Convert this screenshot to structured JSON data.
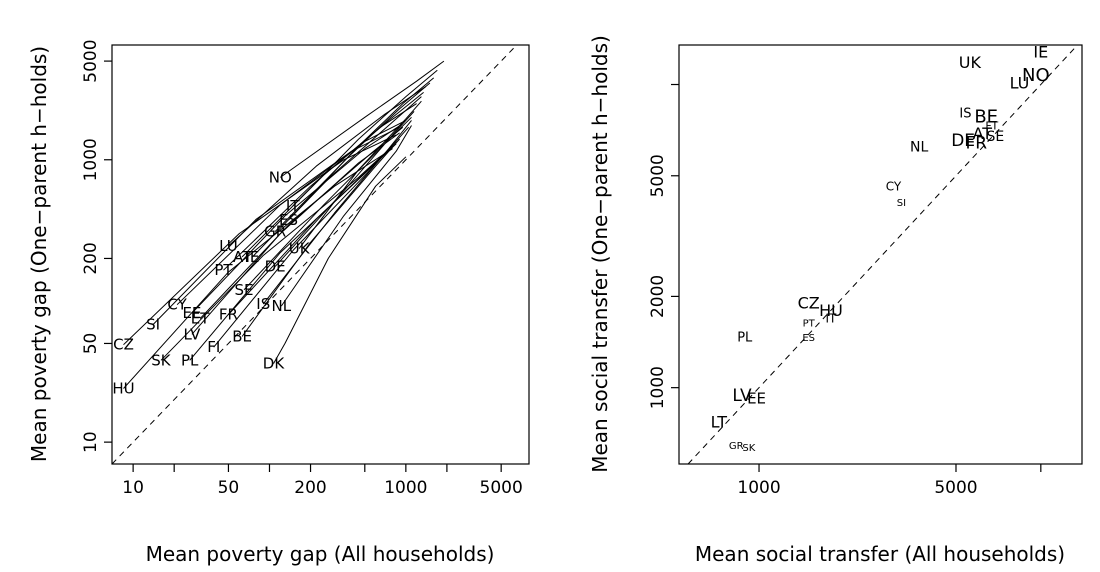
{
  "chart_data": [
    {
      "type": "line",
      "xlabel": "Mean poverty gap (All households)",
      "ylabel": "Mean poverty gap (One−parent h−holds)",
      "xscale": "log",
      "yscale": "log",
      "xlim": [
        7,
        8000
      ],
      "ylim": [
        7,
        6500
      ],
      "xticks": [
        10,
        20,
        50,
        100,
        200,
        500,
        1000,
        2000,
        5000
      ],
      "xtick_labels": [
        "10",
        "",
        "50",
        "",
        "200",
        "",
        "1000",
        "",
        "5000"
      ],
      "yticks": [
        10,
        50,
        200,
        1000,
        5000
      ],
      "ytick_labels": [
        "10",
        "50",
        "200",
        "1000",
        "5000"
      ],
      "reference_line": "y = x (dashed)",
      "series": [
        {
          "name": "NO",
          "x": [
            120,
            500,
            1200,
            1900
          ],
          "y": [
            750,
            2000,
            3600,
            5000
          ]
        },
        {
          "name": "IT",
          "x": [
            148,
            450,
            1000,
            1700
          ],
          "y": [
            470,
            1400,
            2800,
            4300
          ]
        },
        {
          "name": "ES",
          "x": [
            138,
            430,
            950,
            1600
          ],
          "y": [
            375,
            1200,
            2500,
            3800
          ]
        },
        {
          "name": "GR",
          "x": [
            110,
            380,
            900,
            1500
          ],
          "y": [
            310,
            1050,
            2300,
            3500
          ]
        },
        {
          "name": "LU",
          "x": [
            50,
            220,
            700,
            1400
          ],
          "y": [
            245,
            900,
            2100,
            3300
          ]
        },
        {
          "name": "AT",
          "x": [
            63,
            250,
            750,
            1350
          ],
          "y": [
            205,
            780,
            1900,
            3000
          ]
        },
        {
          "name": "IE",
          "x": [
            75,
            280,
            800,
            1300
          ],
          "y": [
            205,
            760,
            1850,
            2800
          ]
        },
        {
          "name": "UK",
          "x": [
            165,
            450,
            1000,
            1300
          ],
          "y": [
            235,
            850,
            1950,
            2600
          ]
        },
        {
          "name": "PT",
          "x": [
            46,
            200,
            650,
            1200
          ],
          "y": [
            165,
            650,
            1700,
            2500
          ]
        },
        {
          "name": "DE",
          "x": [
            110,
            350,
            800,
            1150
          ],
          "y": [
            175,
            600,
            1500,
            2200
          ]
        },
        {
          "name": "SE",
          "x": [
            65,
            250,
            700,
            1100
          ],
          "y": [
            120,
            480,
            1300,
            2000
          ]
        },
        {
          "name": "IS",
          "x": [
            90,
            300,
            750,
            1100
          ],
          "y": [
            95,
            420,
            1200,
            1900
          ]
        },
        {
          "name": "NL",
          "x": [
            122,
            350,
            850,
            1100
          ],
          "y": [
            92,
            400,
            1150,
            1750
          ]
        },
        {
          "name": "FR",
          "x": [
            50,
            220,
            700,
            1050
          ],
          "y": [
            80,
            380,
            1100,
            1700
          ]
        },
        {
          "name": "CY",
          "x": [
            21,
            120,
            500,
            1000
          ],
          "y": [
            94,
            480,
            1350,
            1900
          ]
        },
        {
          "name": "EE",
          "x": [
            27,
            130,
            500,
            950
          ],
          "y": [
            82,
            400,
            1200,
            1800
          ]
        },
        {
          "name": "ET",
          "x": [
            31,
            140,
            550,
            950
          ],
          "y": [
            75,
            350,
            1100,
            1700
          ]
        },
        {
          "name": "LV",
          "x": [
            27,
            120,
            450,
            900
          ],
          "y": [
            58,
            300,
            950,
            1550
          ]
        },
        {
          "name": "SI",
          "x": [
            14,
            80,
            400,
            900
          ],
          "y": [
            68,
            380,
            1150,
            1700
          ]
        },
        {
          "name": "BE",
          "x": [
            63,
            200,
            600,
            900
          ],
          "y": [
            56,
            260,
            900,
            1400
          ]
        },
        {
          "name": "CZ",
          "x": [
            8.5,
            60,
            350,
            850
          ],
          "y": [
            49,
            300,
            1000,
            1500
          ]
        },
        {
          "name": "FI",
          "x": [
            39,
            150,
            550,
            850
          ],
          "y": [
            47,
            230,
            850,
            1350
          ]
        },
        {
          "name": "PL",
          "x": [
            26,
            120,
            500,
            850
          ],
          "y": [
            38,
            220,
            800,
            1300
          ]
        },
        {
          "name": "SK",
          "x": [
            16,
            90,
            450,
            800
          ],
          "y": [
            38,
            210,
            750,
            1250
          ]
        },
        {
          "name": "HU",
          "x": [
            8.5,
            50,
            300,
            800
          ],
          "y": [
            24,
            160,
            650,
            1200
          ]
        },
        {
          "name": "DK",
          "x": [
            107,
            130,
            270,
            600,
            1000
          ],
          "y": [
            36,
            50,
            200,
            650,
            1050
          ]
        }
      ],
      "labels": [
        {
          "text": "NO",
          "x": 120,
          "y": 750,
          "size": 15
        },
        {
          "text": "IT",
          "x": 148,
          "y": 470,
          "size": 15
        },
        {
          "text": "ES",
          "x": 138,
          "y": 375,
          "size": 15
        },
        {
          "text": "GR",
          "x": 110,
          "y": 310,
          "size": 15
        },
        {
          "text": "LU",
          "x": 50,
          "y": 245,
          "size": 15
        },
        {
          "text": "AT",
          "x": 63,
          "y": 205,
          "size": 15
        },
        {
          "text": "IE",
          "x": 75,
          "y": 205,
          "size": 15
        },
        {
          "text": "UK",
          "x": 165,
          "y": 235,
          "size": 15
        },
        {
          "text": "PT",
          "x": 46,
          "y": 165,
          "size": 15
        },
        {
          "text": "DE",
          "x": 110,
          "y": 175,
          "size": 15
        },
        {
          "text": "SE",
          "x": 65,
          "y": 120,
          "size": 15
        },
        {
          "text": "IS",
          "x": 90,
          "y": 95,
          "size": 15
        },
        {
          "text": "NL",
          "x": 122,
          "y": 92,
          "size": 15
        },
        {
          "text": "FR",
          "x": 50,
          "y": 80,
          "size": 15
        },
        {
          "text": "CY",
          "x": 21,
          "y": 94,
          "size": 15
        },
        {
          "text": "EE",
          "x": 27,
          "y": 82,
          "size": 15
        },
        {
          "text": "ET",
          "x": 31,
          "y": 75,
          "size": 15
        },
        {
          "text": "LV",
          "x": 27,
          "y": 58,
          "size": 15
        },
        {
          "text": "SI",
          "x": 14,
          "y": 68,
          "size": 15
        },
        {
          "text": "BE",
          "x": 63,
          "y": 56,
          "size": 15
        },
        {
          "text": "CZ",
          "x": 8.5,
          "y": 49,
          "size": 15
        },
        {
          "text": "FI",
          "x": 39,
          "y": 47,
          "size": 15
        },
        {
          "text": "PL",
          "x": 26,
          "y": 38,
          "size": 15
        },
        {
          "text": "SK",
          "x": 16,
          "y": 38,
          "size": 15
        },
        {
          "text": "HU",
          "x": 8.5,
          "y": 24,
          "size": 15
        },
        {
          "text": "DK",
          "x": 107,
          "y": 36,
          "size": 15
        }
      ]
    },
    {
      "type": "scatter",
      "xlabel": "Mean social transfer (All households)",
      "ylabel": "Mean social transfer (One−parent h−holds)",
      "xscale": "log",
      "yscale": "log",
      "xlim": [
        520,
        14000
      ],
      "ylim": [
        560,
        13500
      ],
      "xticks": [
        1000,
        5000,
        10000
      ],
      "xtick_labels": [
        "1000",
        "5000",
        ""
      ],
      "yticks": [
        1000,
        2000,
        5000,
        10000
      ],
      "ytick_labels": [
        "1000",
        "2000",
        "5000",
        ""
      ],
      "reference_line": "y = x (dashed)",
      "points": [
        {
          "text": "IE",
          "x": 10000,
          "y": 12800,
          "size": 16
        },
        {
          "text": "UK",
          "x": 5600,
          "y": 11800,
          "size": 16
        },
        {
          "text": "NO",
          "x": 9600,
          "y": 10700,
          "size": 18
        },
        {
          "text": "LU",
          "x": 8400,
          "y": 10100,
          "size": 16
        },
        {
          "text": "IS",
          "x": 5400,
          "y": 8000,
          "size": 13
        },
        {
          "text": "BE",
          "x": 6400,
          "y": 7800,
          "size": 18
        },
        {
          "text": "FT",
          "x": 6700,
          "y": 7300,
          "size": 11
        },
        {
          "text": "AT",
          "x": 6200,
          "y": 6900,
          "size": 16
        },
        {
          "text": "SE",
          "x": 6900,
          "y": 6700,
          "size": 14
        },
        {
          "text": "DE",
          "x": 5300,
          "y": 6500,
          "size": 17
        },
        {
          "text": "FR",
          "x": 5900,
          "y": 6400,
          "size": 17
        },
        {
          "text": "NL",
          "x": 3700,
          "y": 6200,
          "size": 14
        },
        {
          "text": "CY",
          "x": 3000,
          "y": 4600,
          "size": 12
        },
        {
          "text": "SI",
          "x": 3200,
          "y": 4050,
          "size": 10
        },
        {
          "text": "CZ",
          "x": 1500,
          "y": 1900,
          "size": 16
        },
        {
          "text": "HU",
          "x": 1800,
          "y": 1800,
          "size": 16
        },
        {
          "text": "IT",
          "x": 1800,
          "y": 1690,
          "size": 12
        },
        {
          "text": "PT",
          "x": 1500,
          "y": 1620,
          "size": 10
        },
        {
          "text": "PL",
          "x": 890,
          "y": 1460,
          "size": 13
        },
        {
          "text": "ES",
          "x": 1500,
          "y": 1450,
          "size": 10
        },
        {
          "text": "LV",
          "x": 870,
          "y": 940,
          "size": 17
        },
        {
          "text": "EE",
          "x": 980,
          "y": 920,
          "size": 15
        },
        {
          "text": "LT",
          "x": 720,
          "y": 770,
          "size": 16
        },
        {
          "text": "GR",
          "x": 830,
          "y": 640,
          "size": 10
        },
        {
          "text": "SK",
          "x": 920,
          "y": 630,
          "size": 10
        }
      ]
    }
  ]
}
